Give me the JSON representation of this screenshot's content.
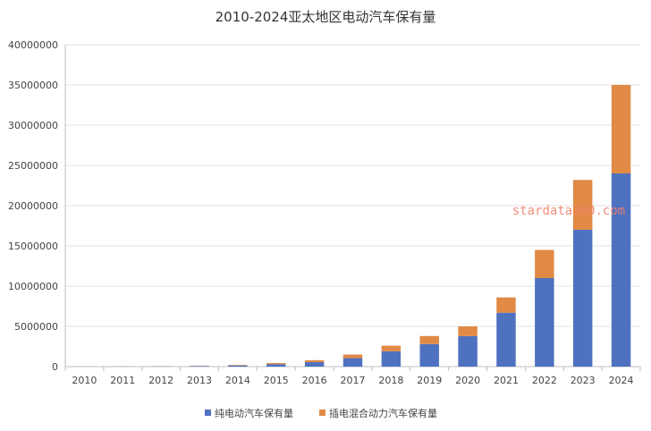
{
  "chart_data": {
    "type": "bar",
    "stacked": true,
    "title": "2010-2024亚太地区电动汽车保有量",
    "xlabel": "",
    "ylabel": "",
    "categories": [
      "2010",
      "2011",
      "2012",
      "2013",
      "2014",
      "2015",
      "2016",
      "2017",
      "2018",
      "2019",
      "2020",
      "2021",
      "2022",
      "2023",
      "2024"
    ],
    "series": [
      {
        "name": "纯电动汽车保有量",
        "color": "#4e71c0",
        "values": [
          5000,
          20000,
          40000,
          80000,
          150000,
          300000,
          550000,
          1050000,
          1900000,
          2800000,
          3800000,
          6700000,
          11000000,
          17000000,
          24000000
        ]
      },
      {
        "name": "插电混合动力汽车保有量",
        "color": "#e08a45",
        "values": [
          1000,
          5000,
          15000,
          30000,
          60000,
          150000,
          250000,
          450000,
          700000,
          1000000,
          1200000,
          1900000,
          3500000,
          6200000,
          11000000
        ]
      }
    ],
    "ylim": [
      0,
      40000000
    ],
    "yticks": [
      "0",
      "5000000",
      "10000000",
      "15000000",
      "20000000",
      "25000000",
      "30000000",
      "35000000",
      "40000000"
    ],
    "grid": true,
    "legend_position": "bottom-center",
    "watermark": "stardata360.com"
  }
}
